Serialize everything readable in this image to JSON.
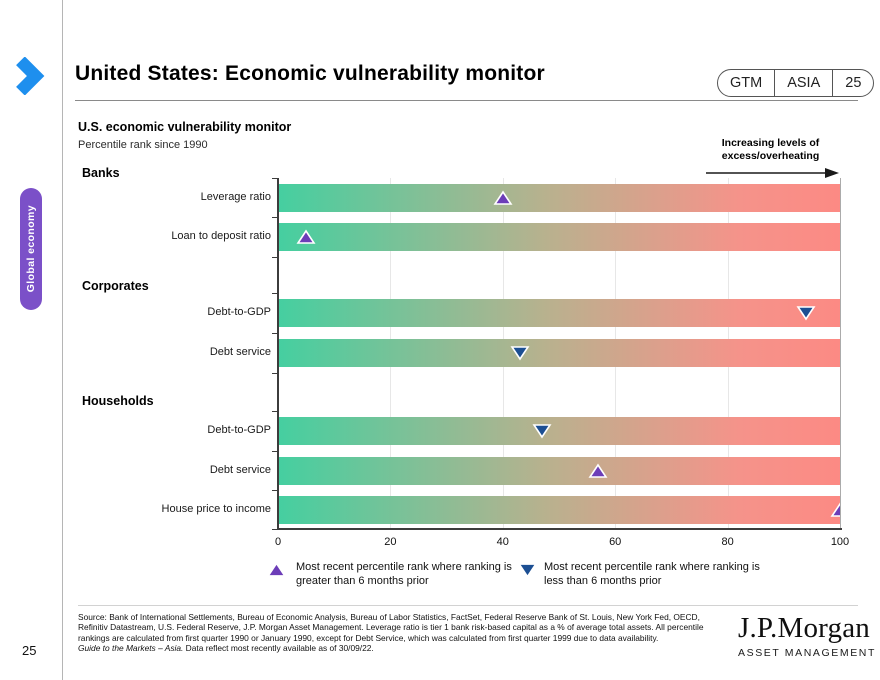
{
  "page": {
    "number": "25"
  },
  "header": {
    "title": "United States: Economic vulnerability monitor",
    "badges": [
      "GTM",
      "ASIA",
      "25"
    ]
  },
  "sidebar": {
    "tab_label": "Global economy",
    "tab_color": "#7b50c8"
  },
  "chart": {
    "title": "U.S. economic vulnerability monitor",
    "subtitle": "Percentile rank since 1990",
    "annotation": {
      "line1": "Increasing levels of",
      "line2": "excess/overheating"
    }
  },
  "chart_data": {
    "type": "scatter",
    "title": "U.S. economic vulnerability monitor",
    "subtitle": "Percentile rank since 1990",
    "xlabel": "Percentile rank since 1990",
    "xlim": [
      0,
      100
    ],
    "x_ticks": [
      "0",
      "20",
      "40",
      "60",
      "80",
      "100"
    ],
    "grid": true,
    "groups": [
      {
        "label": "Banks",
        "rows": [
          {
            "label": "Leverage ratio",
            "value": 40,
            "direction": "up"
          },
          {
            "label": "Loan to deposit ratio",
            "value": 5,
            "direction": "up"
          }
        ]
      },
      {
        "label": "Corporates",
        "rows": [
          {
            "label": "Debt-to-GDP",
            "value": 94,
            "direction": "down"
          },
          {
            "label": "Debt service",
            "value": 43,
            "direction": "down"
          }
        ]
      },
      {
        "label": "Households",
        "rows": [
          {
            "label": "Debt-to-GDP",
            "value": 47,
            "direction": "down"
          },
          {
            "label": "Debt service",
            "value": 57,
            "direction": "up"
          },
          {
            "label": "House price to income",
            "value": 100,
            "direction": "up"
          }
        ]
      }
    ],
    "colors": {
      "bar_gradient_left": "#45cfa0",
      "bar_gradient_mid": "#b9b18e",
      "bar_gradient_right": "#fc8a84",
      "marker_up": "#6c3db8",
      "marker_down": "#1c4f93",
      "accent_blue": "#1e8fee"
    }
  },
  "legend": {
    "items": [
      {
        "marker": "up-triangle",
        "color": "#6c3db8",
        "line1": "Most recent percentile rank where ranking is",
        "line2": "greater than 6 months prior"
      },
      {
        "marker": "down-triangle",
        "color": "#1c4f93",
        "line1": "Most recent percentile rank where ranking is",
        "line2": "less than 6 months prior"
      }
    ]
  },
  "footer": {
    "source_lines": [
      "Source: Bank of International Settlements, Bureau of Economic Analysis, Bureau of Labor Statistics, FactSet, Federal Reserve Bank of St. Louis, New York Fed, OECD,",
      "Refinitiv Datastream, U.S. Federal Reserve, J.P. Morgan Asset Management. Leverage ratio is tier 1 bank risk-based capital as a % of average total assets. All percentile",
      "rankings are calculated from first quarter 1990 or January 1990, except for Debt Service, which was calculated from first quarter 1999 due to data availability."
    ],
    "gtm_italic": "Guide to the Markets – Asia.",
    "gtm_rest": " Data reflect most recently available as of 30/09/22.",
    "logo_line1": "J.P.Morgan",
    "logo_line2": "ASSET MANAGEMENT"
  }
}
